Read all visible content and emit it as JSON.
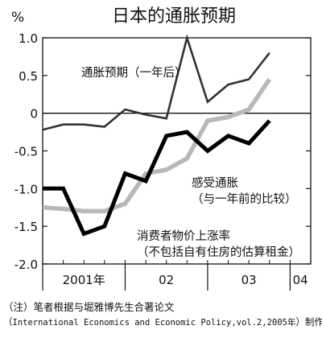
{
  "chart_data": {
    "type": "line",
    "title": "日本的通胀预期",
    "y_unit": "%",
    "ylim": [
      -2.0,
      1.0
    ],
    "y_ticks": [
      "1.0",
      "0.5",
      "0",
      "-0.5",
      "-1.0",
      "-1.5",
      "-2.0"
    ],
    "x_period_labels": [
      "2001年",
      "02",
      "03",
      "04"
    ],
    "grid": false,
    "zero_line": true,
    "series": [
      {
        "name": "通胀预期（一年后）",
        "label_lines": [
          "通胀预期（一年后）"
        ],
        "style": "thin-dark",
        "color": "#333333",
        "values": [
          [
            "2001-01",
            -0.22
          ],
          [
            "2001-04",
            -0.15
          ],
          [
            "2001-07",
            -0.15
          ],
          [
            "2001-10",
            -0.18
          ],
          [
            "2002-01",
            0.05
          ],
          [
            "2002-04",
            -0.02
          ],
          [
            "2002-07",
            -0.07
          ],
          [
            "2002-10",
            1.0
          ],
          [
            "2003-01",
            0.15
          ],
          [
            "2003-04",
            0.38
          ],
          [
            "2003-07",
            0.45
          ],
          [
            "2003-10",
            0.8
          ]
        ]
      },
      {
        "name": "感受通胀（与一年前的比较）",
        "label_lines": [
          "感受通胀",
          "（与一年前的比较）"
        ],
        "style": "thick-gray",
        "color": "#b8b8b8",
        "values": [
          [
            "2001-01",
            -1.25
          ],
          [
            "2001-04",
            -1.27
          ],
          [
            "2001-07",
            -1.3
          ],
          [
            "2001-10",
            -1.3
          ],
          [
            "2002-01",
            -1.2
          ],
          [
            "2002-04",
            -0.8
          ],
          [
            "2002-07",
            -0.75
          ],
          [
            "2002-10",
            -0.6
          ],
          [
            "2003-01",
            -0.1
          ],
          [
            "2003-04",
            -0.05
          ],
          [
            "2003-07",
            0.05
          ],
          [
            "2003-10",
            0.45
          ]
        ]
      },
      {
        "name": "消费者物价上涨率（不包括自有住房的估算租金）",
        "label_lines": [
          "消费者物价上涨率",
          "（不包括自有住房的估算租金）"
        ],
        "style": "thick-black",
        "color": "#000000",
        "values": [
          [
            "2001-01",
            -1.0
          ],
          [
            "2001-04",
            -1.0
          ],
          [
            "2001-07",
            -1.6
          ],
          [
            "2001-10",
            -1.5
          ],
          [
            "2002-01",
            -0.8
          ],
          [
            "2002-04",
            -0.9
          ],
          [
            "2002-07",
            -0.3
          ],
          [
            "2002-10",
            -0.25
          ],
          [
            "2003-01",
            -0.5
          ],
          [
            "2003-04",
            -0.3
          ],
          [
            "2003-07",
            -0.4
          ],
          [
            "2003-10",
            -0.1
          ]
        ]
      }
    ]
  },
  "notes": {
    "line1": "（注）笔者根据与堀雅博先生合著论文",
    "line2_open": "（",
    "line2_mono": "International Economics and Economic Policy,vol.2,2005年",
    "line2_close": "）制作"
  }
}
